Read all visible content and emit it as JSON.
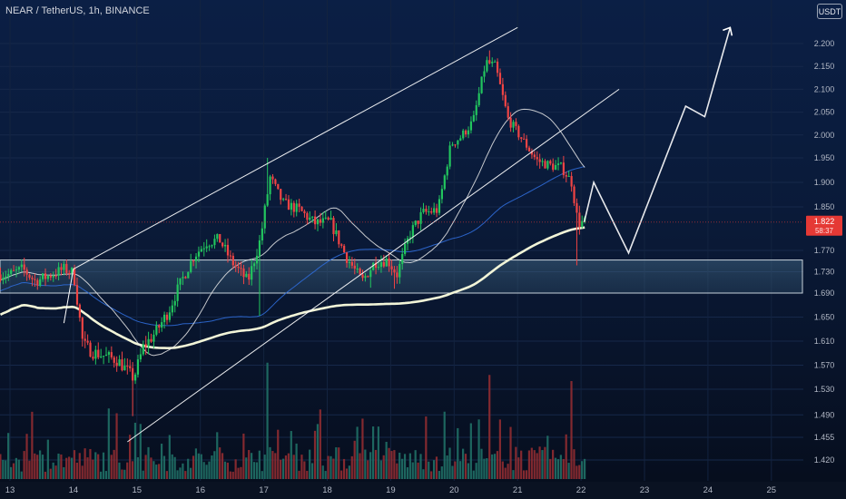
{
  "header": {
    "symbol": "NEAR / TetherUS, 1h, BINANCE",
    "currency_button": "USDT"
  },
  "colors": {
    "background": "#0a1a38",
    "bull": "#22c55e",
    "bear": "#ef4444",
    "volume_bull": "#1f6b63",
    "volume_bear": "#8a2b30",
    "trendline": "#ffffff",
    "ma_thick": "#f2f5d8",
    "ma_thin": "#e8e8e8",
    "ma_blue": "#2f6bd8",
    "zone_fill": "#3a5f7a",
    "price_label": "#e53935"
  },
  "chart_data": {
    "type": "candlestick",
    "symbol": "NEAR/USDT",
    "interval": "1h",
    "ylim": [
      1.4,
      2.25
    ],
    "y_ticks": [
      "2.200",
      "2.150",
      "2.100",
      "2.050",
      "2.000",
      "1.950",
      "1.900",
      "1.850",
      "1.770",
      "1.730",
      "1.690",
      "1.650",
      "1.610",
      "1.570",
      "1.530",
      "1.490",
      "1.455",
      "1.420"
    ],
    "x_ticks": [
      "13",
      "14",
      "15",
      "16",
      "17",
      "18",
      "19",
      "20",
      "21",
      "22",
      "23",
      "24",
      "25"
    ],
    "current_price": "1.822",
    "countdown": "58:37",
    "price_path": [
      [
        13.0,
        1.725
      ],
      [
        13.2,
        1.735
      ],
      [
        13.4,
        1.712
      ],
      [
        13.6,
        1.722
      ],
      [
        13.85,
        1.735
      ],
      [
        14.0,
        1.728
      ],
      [
        14.15,
        1.605
      ],
      [
        14.3,
        1.592
      ],
      [
        14.5,
        1.585
      ],
      [
        14.7,
        1.578
      ],
      [
        14.95,
        1.548
      ],
      [
        15.1,
        1.6
      ],
      [
        15.3,
        1.625
      ],
      [
        15.5,
        1.66
      ],
      [
        15.7,
        1.712
      ],
      [
        15.9,
        1.76
      ],
      [
        16.1,
        1.785
      ],
      [
        16.3,
        1.79
      ],
      [
        16.5,
        1.748
      ],
      [
        16.75,
        1.712
      ],
      [
        16.95,
        1.792
      ],
      [
        17.1,
        1.91
      ],
      [
        17.3,
        1.858
      ],
      [
        17.55,
        1.845
      ],
      [
        17.8,
        1.82
      ],
      [
        18.05,
        1.822
      ],
      [
        18.3,
        1.758
      ],
      [
        18.55,
        1.712
      ],
      [
        18.75,
        1.748
      ],
      [
        18.95,
        1.752
      ],
      [
        19.1,
        1.725
      ],
      [
        19.3,
        1.8
      ],
      [
        19.5,
        1.838
      ],
      [
        19.75,
        1.845
      ],
      [
        19.95,
        1.98
      ],
      [
        20.1,
        1.995
      ],
      [
        20.3,
        2.03
      ],
      [
        20.5,
        2.16
      ],
      [
        20.65,
        2.15
      ],
      [
        20.85,
        2.035
      ],
      [
        21.1,
        1.985
      ],
      [
        21.3,
        1.945
      ],
      [
        21.5,
        1.935
      ],
      [
        21.7,
        1.93
      ],
      [
        21.85,
        1.9
      ],
      [
        21.95,
        1.82
      ],
      [
        22.05,
        1.822
      ]
    ],
    "volume_spikes": [
      [
        17.05,
        0.95
      ],
      [
        20.55,
        0.85
      ],
      [
        21.85,
        0.8
      ],
      [
        15.05,
        0.45
      ],
      [
        19.85,
        0.55
      ]
    ],
    "annotations": {
      "channel_upper": [
        [
          14.0,
          1.735
        ],
        [
          21.0,
          2.235
        ]
      ],
      "channel_lower": [
        [
          14.85,
          1.448
        ],
        [
          22.6,
          2.1
        ]
      ],
      "support_zone": [
        1.69,
        1.752
      ],
      "projection": [
        [
          22.05,
          1.822
        ],
        [
          22.2,
          1.9
        ],
        [
          22.75,
          1.765
        ],
        [
          23.65,
          2.063
        ],
        [
          23.95,
          2.04
        ],
        [
          24.35,
          2.235
        ]
      ]
    }
  }
}
